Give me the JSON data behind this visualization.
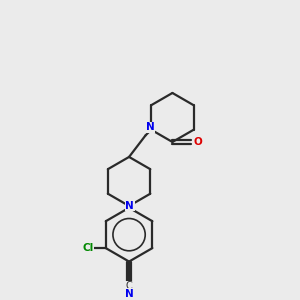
{
  "bg_color": "#ebebeb",
  "line_color": "#2a2a2a",
  "N_color": "#0000ee",
  "O_color": "#dd0000",
  "Cl_color": "#008800",
  "lw": 1.6,
  "figsize": [
    3.0,
    3.0
  ],
  "dpi": 100,
  "xlim": [
    0,
    10
  ],
  "ylim": [
    0,
    10
  ]
}
